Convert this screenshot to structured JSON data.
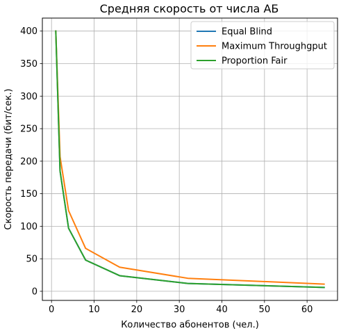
{
  "chart_data": {
    "type": "line",
    "title": "Средняя скорость от числа АБ",
    "xlabel": "Количество абонентов (чел.)",
    "ylabel": "Скорость передачи (бит/сек.)",
    "xlim": [
      -2.15,
      67.15
    ],
    "ylim": [
      -14,
      420
    ],
    "xticks": [
      0,
      10,
      20,
      30,
      40,
      50,
      60
    ],
    "yticks": [
      0,
      50,
      100,
      150,
      200,
      250,
      300,
      350,
      400
    ],
    "grid": true,
    "legend_position": "top-right",
    "x": [
      1,
      2,
      4,
      8,
      16,
      32,
      64
    ],
    "series": [
      {
        "name": "Equal Blind",
        "color": "#1f77b4",
        "values": [
          400,
          185,
          97,
          48,
          24,
          12,
          6
        ]
      },
      {
        "name": "Maximum Throughgput",
        "color": "#ff7f0e",
        "values": [
          400,
          207,
          124,
          66,
          37,
          20,
          11
        ]
      },
      {
        "name": "Proportion Fair",
        "color": "#2ca02c",
        "values": [
          400,
          185,
          97,
          48,
          24,
          12,
          6
        ]
      }
    ]
  }
}
